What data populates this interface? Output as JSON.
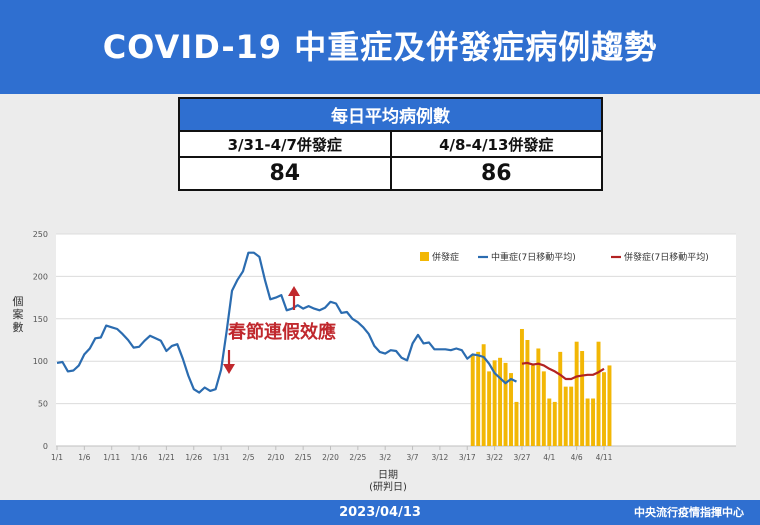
{
  "title": "COVID-19 中重症及併發症病例趨勢",
  "summary": {
    "header": "每日平均病例數",
    "periods": [
      {
        "label": "3/31-4/7併發症",
        "value": "84"
      },
      {
        "label": "4/8-4/13併發症",
        "value": "86"
      }
    ]
  },
  "footer": {
    "date": "2023/04/13",
    "org": "中央流行疫情指揮中心"
  },
  "colors": {
    "title_bg": "#2f6fd0",
    "bar": "#f2b705",
    "line_moderate": "#2b6cb0",
    "line_complication": "#b22222",
    "annotation": "#c0282d"
  },
  "chart_data": {
    "type": "bar+line",
    "ylabel": "個案數",
    "xlabel": "日期\n(研判日)",
    "ylim": [
      0,
      250
    ],
    "yticks": [
      0,
      50,
      100,
      150,
      200,
      250
    ],
    "x_start": "2023-01-01",
    "xticks": [
      "1/1",
      "1/6",
      "1/11",
      "1/16",
      "1/21",
      "1/26",
      "1/31",
      "2/5",
      "2/10",
      "2/15",
      "2/20",
      "2/25",
      "3/2",
      "3/7",
      "3/12",
      "3/17",
      "3/22",
      "3/27",
      "4/1",
      "4/6",
      "4/11"
    ],
    "legend": [
      "併發症",
      "中重症(7日移動平均)",
      "併發症(7日移動平均)"
    ],
    "legend_position": "top-right",
    "annotation": {
      "text": "春節連假效應"
    },
    "series": [
      {
        "name": "中重症(7日移動平均)",
        "type": "line",
        "x_start": "1/1",
        "values": [
          98,
          99,
          88,
          89,
          95,
          108,
          115,
          127,
          128,
          142,
          140,
          138,
          132,
          125,
          116,
          117,
          124,
          130,
          127,
          124,
          112,
          118,
          120,
          103,
          83,
          67,
          63,
          69,
          65,
          67,
          90,
          135,
          183,
          196,
          206,
          228,
          228,
          223,
          196,
          173,
          175,
          178,
          160,
          162,
          166,
          162,
          165,
          162,
          160,
          163,
          170,
          168,
          157,
          158,
          150,
          146,
          140,
          132,
          118,
          111,
          109,
          113,
          112,
          104,
          101,
          121,
          131,
          121,
          122,
          114,
          114,
          114,
          113,
          115,
          113,
          103,
          108,
          107,
          105,
          97,
          86,
          80,
          74,
          79,
          76
        ]
      },
      {
        "name": "併發症",
        "type": "bar",
        "x_start": "3/18",
        "values": [
          108,
          111,
          120,
          88,
          101,
          104,
          98,
          86,
          52,
          138,
          125,
          95,
          115,
          88,
          56,
          52,
          111,
          70,
          70,
          123,
          112,
          56,
          56,
          123,
          87,
          95
        ]
      },
      {
        "name": "併發症(7日移動平均)",
        "type": "line",
        "x_start": "3/27",
        "values": [
          97,
          98,
          96,
          97,
          95,
          91,
          88,
          84,
          79,
          79,
          82,
          83,
          84,
          84,
          87,
          91
        ]
      }
    ]
  }
}
